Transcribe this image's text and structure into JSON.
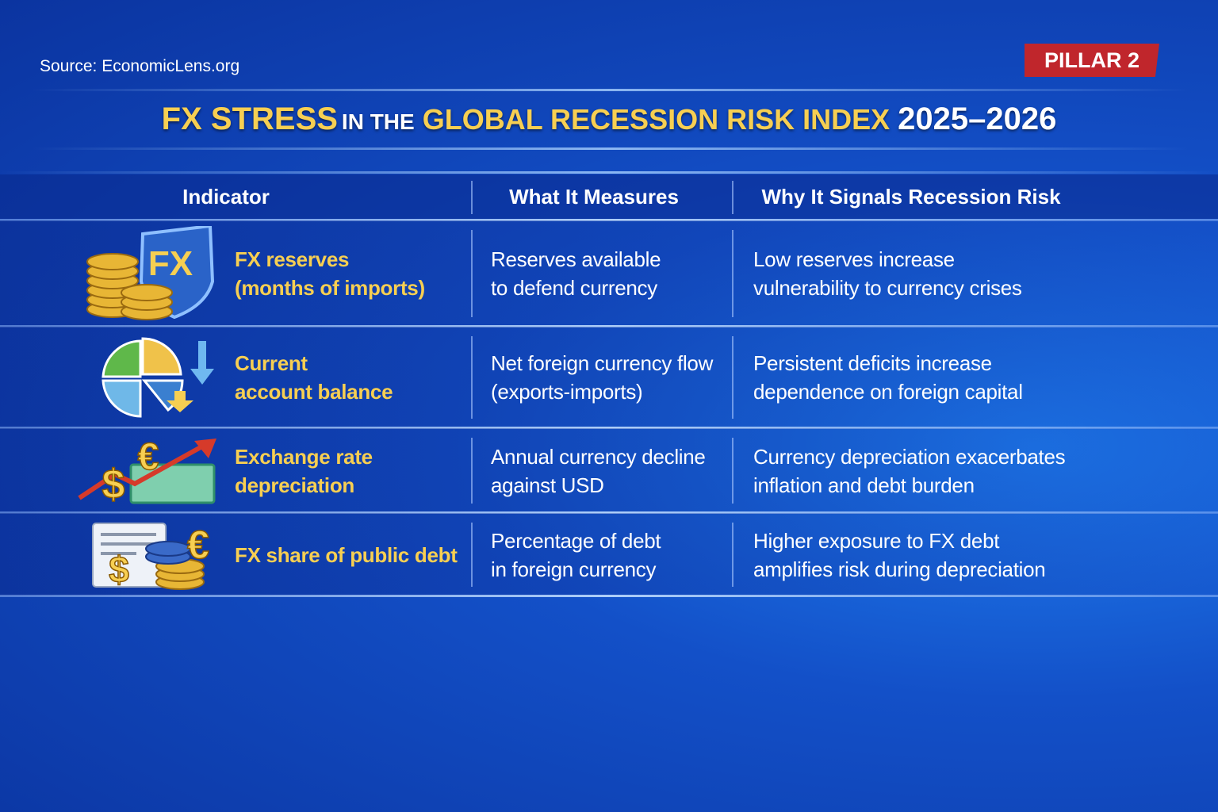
{
  "source": "Source: EconomicLens.org",
  "badge": "PILLAR 2",
  "title": [
    "FX STRESS",
    "IN THE",
    "GLOBAL RECESSION RISK INDEX",
    "2025–2026"
  ],
  "table": {
    "headers": [
      "Indicator",
      "What It Measures",
      "Why It Signals Recession Risk"
    ],
    "rows": [
      {
        "icon_text": [
          "FX"
        ],
        "indicator": [
          "FX reserves",
          "(months of imports)"
        ],
        "measures": [
          "Reserves available",
          "to defend currency"
        ],
        "why": [
          "Low reserves increase",
          "vulnerability to currency crises"
        ]
      },
      {
        "icon_text": [],
        "indicator": [
          "Current",
          "account balance"
        ],
        "measures": [
          "Net foreign currency flow",
          "(exports-imports)"
        ],
        "why": [
          "Persistent deficits increase",
          "dependence on foreign capital"
        ]
      },
      {
        "icon_text": [
          "$",
          "€"
        ],
        "indicator": [
          "Exchange rate",
          "depreciation"
        ],
        "measures": [
          "Annual currency decline",
          "against USD"
        ],
        "why": [
          "Currency depreciation exacerbates",
          "inflation and debt burden"
        ]
      },
      {
        "icon_text": [
          "$",
          "€"
        ],
        "indicator": [
          "FX share of public debt"
        ],
        "measures": [
          "Percentage of debt",
          "in foreign currency"
        ],
        "why": [
          "Higher exposure to FX debt",
          "amplifies risk during depreciation"
        ]
      }
    ]
  }
}
